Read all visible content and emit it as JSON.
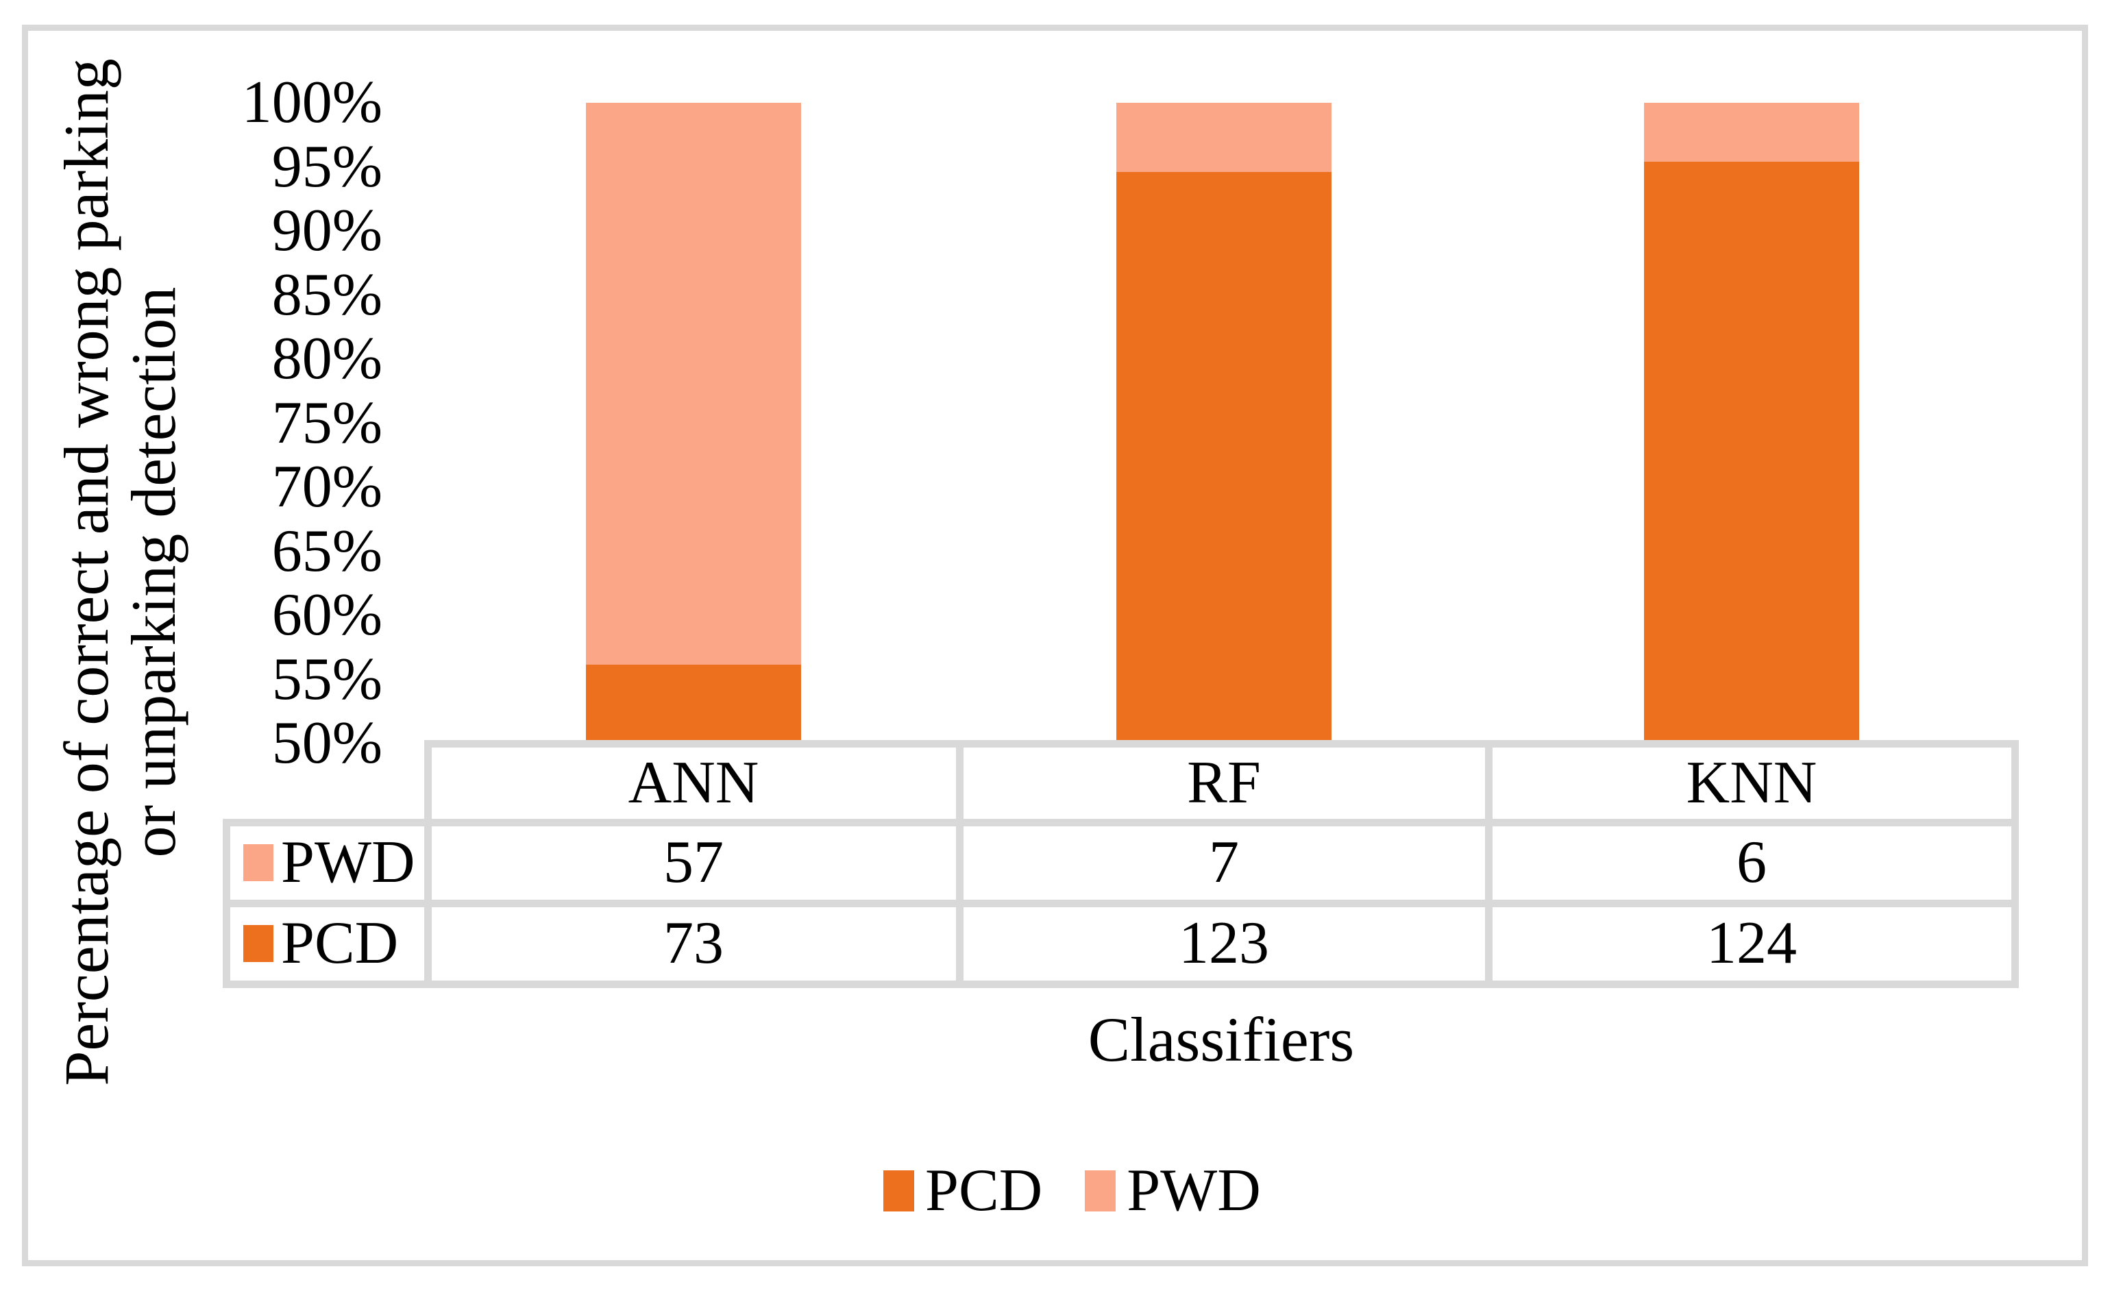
{
  "y_axis": {
    "title_line1": "Percentage of correct and wrong parking",
    "title_line2": "or unparking detection",
    "ticks": [
      "100%",
      "95%",
      "90%",
      "85%",
      "80%",
      "75%",
      "70%",
      "65%",
      "60%",
      "55%",
      "50%"
    ]
  },
  "x_axis": {
    "title": "Classifiers"
  },
  "legend": {
    "items": [
      {
        "label": "PCD",
        "color": "#EC701E"
      },
      {
        "label": "PWD",
        "color": "#FBA687"
      }
    ]
  },
  "colors": {
    "pcd": "#EC701E",
    "pwd": "#FBA687",
    "grid": "#D9D9D9"
  },
  "chart_data": {
    "type": "bar",
    "subtype": "stacked-100-percent",
    "categories": [
      "ANN",
      "RF",
      "KNN"
    ],
    "series": [
      {
        "name": "PCD",
        "color": "#EC701E",
        "values": [
          73,
          123,
          124
        ]
      },
      {
        "name": "PWD",
        "color": "#FBA687",
        "values": [
          57,
          7,
          6
        ]
      }
    ],
    "title": "",
    "xlabel": "Classifiers",
    "ylabel": "Percentage of correct and wrong parking or unparking detection",
    "ylim": [
      "50%",
      "100%"
    ],
    "y_tick_step": "5%",
    "grid": "off",
    "legend_position": "bottom",
    "data_table": {
      "header": [
        "ANN",
        "RF",
        "KNN"
      ],
      "rows": [
        {
          "label": "PWD",
          "values": [
            "57",
            "7",
            "6"
          ]
        },
        {
          "label": "PCD",
          "values": [
            "73",
            "123",
            "124"
          ]
        }
      ]
    }
  }
}
